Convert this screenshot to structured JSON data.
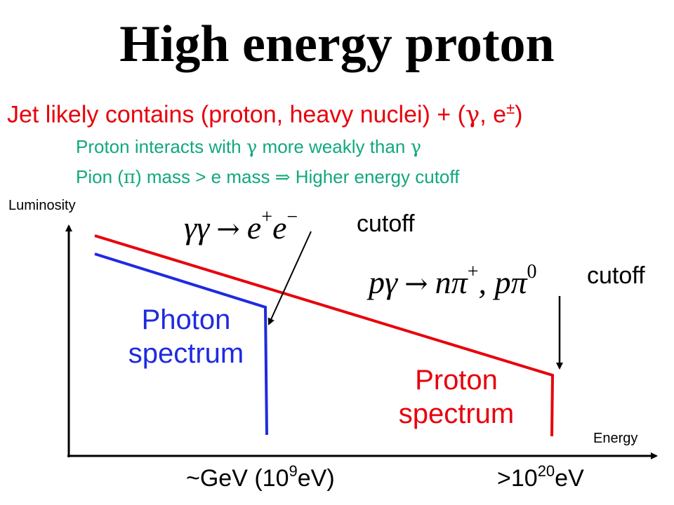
{
  "title": "High energy proton",
  "subtitle": {
    "prefix": "Jet likely contains (proton, heavy nuclei) + (",
    "gamma": "γ",
    "mid": ", e",
    "pm": "±",
    "suffix": ")"
  },
  "notes": {
    "line1_prefix": "Proton interacts with ",
    "line1_gamma1": "γ",
    "line1_mid": " more weakly than ",
    "line1_gamma2": "γ",
    "line2_prefix": "Pion (",
    "line2_pi": "π",
    "line2_mid": ") mass > e mass ",
    "line2_arrow": "⇒",
    "line2_suffix": " Higher energy cutoff"
  },
  "axes": {
    "ylabel": "Luminosity",
    "xlabel": "Energy"
  },
  "equations": {
    "eq1": {
      "lhs": "γγ",
      "arrow": "→",
      "rhs1": "e",
      "sup1": "+",
      "rhs2": "e",
      "sup2": "−"
    },
    "eq2": {
      "lhs": "pγ",
      "arrow": "→",
      "r1": "nπ",
      "sup1": "+",
      "sep": ", ",
      "r2": "pπ",
      "sup2": "0"
    }
  },
  "cutoff_labels": {
    "photon": "cutoff",
    "proton": "cutoff"
  },
  "spectra": {
    "photon": {
      "line1": "Photon",
      "line2": "spectrum",
      "color": "#1f2ae0"
    },
    "proton": {
      "line1": "Proton",
      "line2": "spectrum",
      "color": "#e8000b"
    }
  },
  "ticks": {
    "photon_cutoff": {
      "base": "~GeV (10",
      "exp": "9",
      "tail": "eV)"
    },
    "proton_cutoff": {
      "base": ">10",
      "exp": "20",
      "tail": "eV"
    }
  },
  "colors": {
    "subtitle": "#e8000b",
    "notes": "#12a87e",
    "axes": "#000000"
  }
}
